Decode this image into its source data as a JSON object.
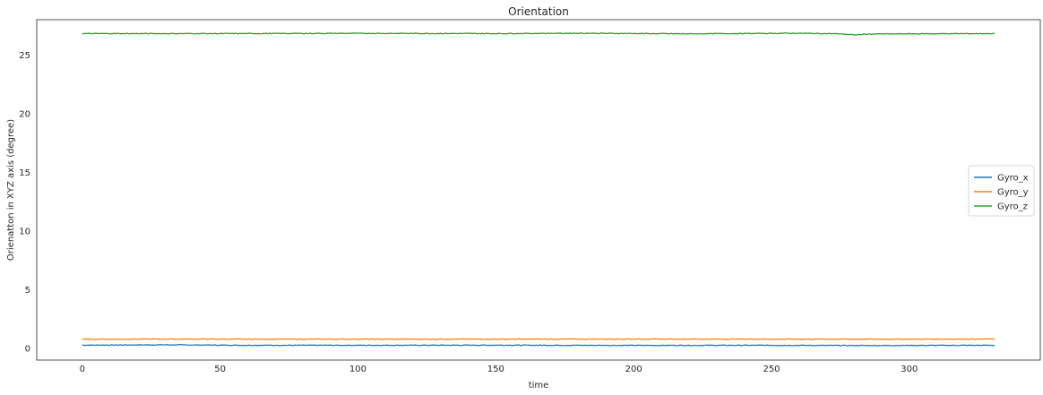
{
  "chart_data": {
    "type": "line",
    "title": "Orientation",
    "xlabel": "time",
    "ylabel": "Orienatton in XYZ axis (degree)",
    "xlim": [
      -16.5,
      347.5
    ],
    "ylim": [
      -1.0,
      28.0
    ],
    "xticks": [
      0,
      50,
      100,
      150,
      200,
      250,
      300
    ],
    "yticks": [
      0,
      5,
      10,
      15,
      20,
      25
    ],
    "grid": false,
    "legend": "center-right",
    "x_range": [
      0,
      331
    ],
    "series": [
      {
        "name": "Gyro_x",
        "color": "#1f77b4",
        "points": [
          [
            0,
            0.27
          ],
          [
            30,
            0.3
          ],
          [
            60,
            0.26
          ],
          [
            100,
            0.26
          ],
          [
            150,
            0.27
          ],
          [
            200,
            0.25
          ],
          [
            250,
            0.26
          ],
          [
            280,
            0.24
          ],
          [
            331,
            0.26
          ]
        ]
      },
      {
        "name": "Gyro_y",
        "color": "#ff7f0e",
        "points": [
          [
            0,
            0.77
          ],
          [
            30,
            0.79
          ],
          [
            60,
            0.78
          ],
          [
            100,
            0.78
          ],
          [
            150,
            0.78
          ],
          [
            200,
            0.79
          ],
          [
            250,
            0.78
          ],
          [
            300,
            0.78
          ],
          [
            331,
            0.79
          ]
        ]
      },
      {
        "name": "Gyro_z",
        "color": "#2ca02c",
        "points": [
          [
            0,
            26.82
          ],
          [
            50,
            26.82
          ],
          [
            100,
            26.84
          ],
          [
            150,
            26.82
          ],
          [
            180,
            26.85
          ],
          [
            220,
            26.8
          ],
          [
            260,
            26.85
          ],
          [
            275,
            26.8
          ],
          [
            280,
            26.7
          ],
          [
            285,
            26.78
          ],
          [
            300,
            26.8
          ],
          [
            331,
            26.82
          ]
        ]
      }
    ]
  }
}
